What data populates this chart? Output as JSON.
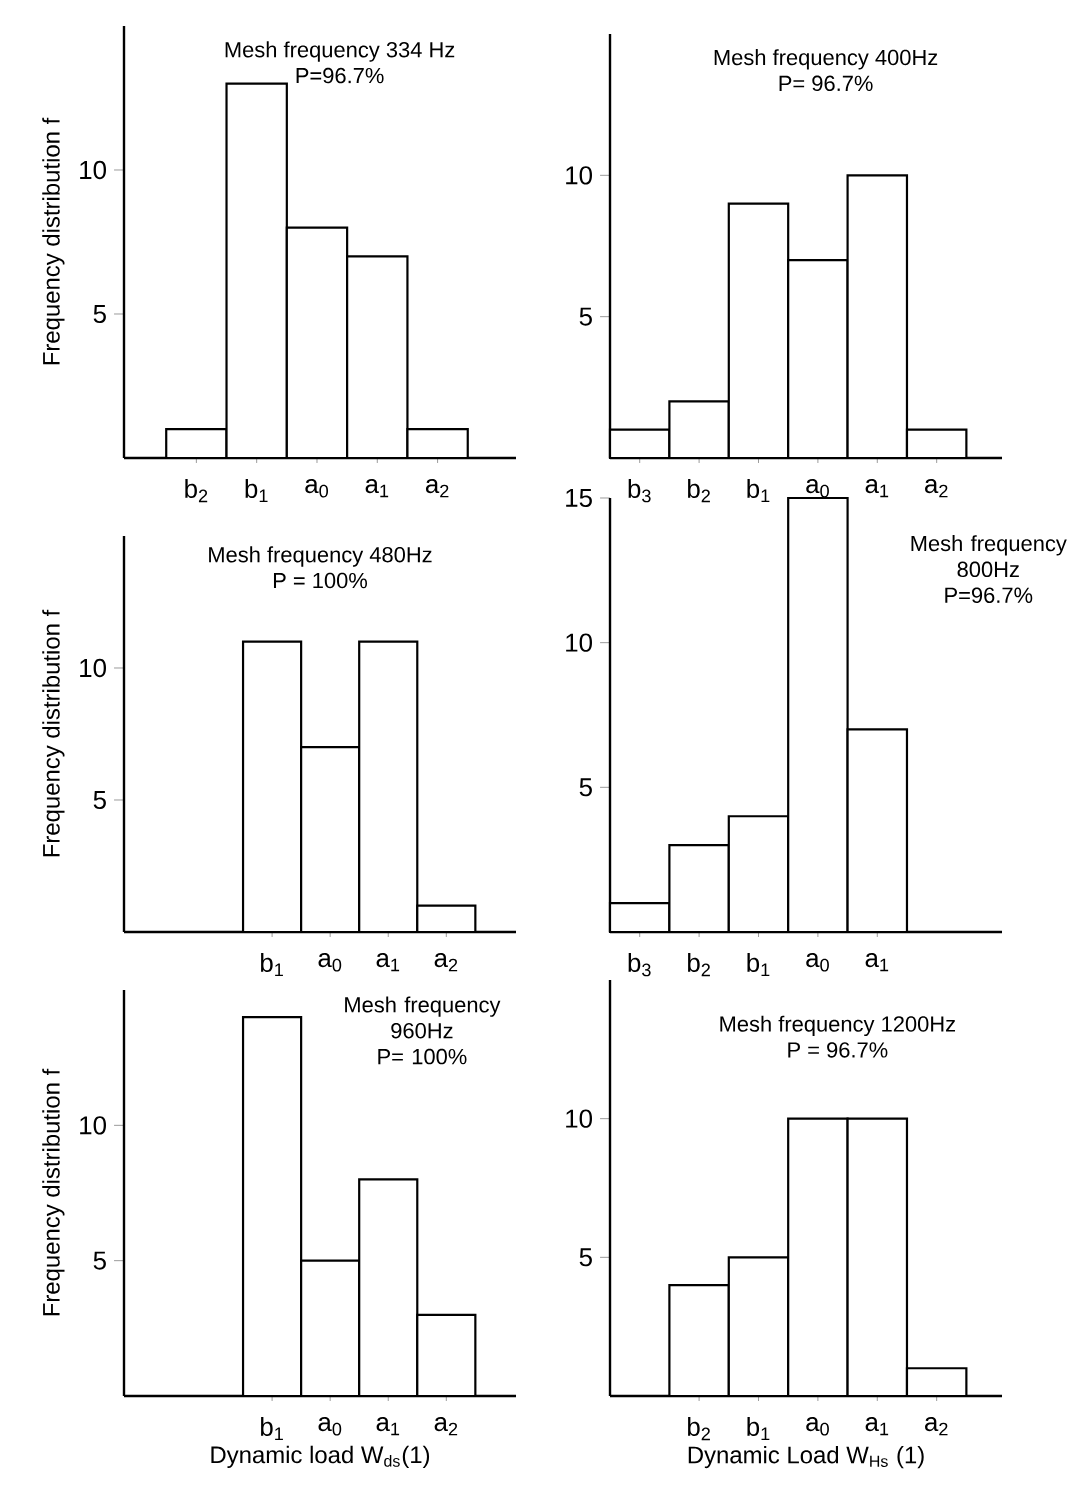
{
  "chart_data": [
    {
      "type": "bar",
      "title": "Mesh frequency 334 Hz",
      "subtitle": "P=96.7%",
      "ylabel": "Frequency distribution f",
      "categories": [
        "b$_{2}$",
        "b$_{1}$",
        "a$_{0}$",
        "a$_{1}$",
        "a$_{2}$"
      ],
      "values": [
        1,
        13,
        8,
        7,
        1
      ],
      "color": "#ffffff",
      "ylim": [
        0,
        15
      ],
      "yticks": [
        5,
        10
      ]
    },
    {
      "type": "bar",
      "title": "Mesh frequency 400Hz",
      "subtitle": "P= 96.7%",
      "categories": [
        "b$_{3}$",
        "b$_{2}$",
        "b$_{1}$",
        "a$_{0}$",
        "a$_{1}$",
        "a$_{2}$"
      ],
      "values": [
        1,
        2,
        9,
        7,
        10,
        1
      ],
      "color": "#ffffff",
      "ylim": [
        0,
        15
      ],
      "yticks": [
        5,
        10
      ]
    },
    {
      "type": "bar",
      "title": "Mesh frequency 480Hz",
      "subtitle": "P = 100%",
      "ylabel": "Frequency distribution f",
      "categories": [
        null,
        null,
        "b$_{1}$",
        "a$_{0}$",
        "a$_{1}$",
        "a$_{2}$"
      ],
      "values": [
        null,
        null,
        11,
        7,
        11,
        1
      ],
      "color": "#ffffff",
      "ylim": [
        0,
        15
      ],
      "yticks": [
        5,
        10
      ]
    },
    {
      "type": "bar",
      "title": "Mesh frequency 800Hz",
      "subtitle": "P=96.7%",
      "categories": [
        "b$_{3}$",
        "b$_{2}$",
        "b$_{1}$",
        "a$_{0}$",
        "a$_{1}$",
        null
      ],
      "values": [
        1,
        3,
        4,
        15,
        7,
        null
      ],
      "color": "#ffffff",
      "ylim": [
        0,
        15
      ],
      "yticks": [
        5,
        10,
        15
      ]
    },
    {
      "type": "bar",
      "title": "Mesh frequency 960Hz",
      "subtitle": "P= 100%",
      "ylabel": "Frequency distribution f",
      "xlabel": "Dynamic load W$_{ds}$(1)",
      "categories": [
        null,
        null,
        "b$_{1}$",
        "a$_{0}$",
        "a$_{1}$",
        "a$_{2}$"
      ],
      "values": [
        null,
        null,
        14,
        5,
        8,
        3
      ],
      "color": "#ffffff",
      "ylim": [
        0,
        15
      ],
      "yticks": [
        5,
        10
      ]
    },
    {
      "type": "bar",
      "title": "Mesh frequency 1200Hz",
      "subtitle": "P = 96.7%",
      "xlabel": "Dynamic Load W$_{Hs}$ (1)",
      "categories": [
        null,
        "b$_{2}$",
        "b$_{1}$",
        "a$_{0}$",
        "a$_{1}$",
        "a$_{2}$"
      ],
      "values": [
        null,
        4,
        5,
        10,
        10,
        1
      ],
      "color": "#ffffff",
      "ylim": [
        0,
        15
      ],
      "yticks": [
        5,
        10
      ]
    }
  ]
}
